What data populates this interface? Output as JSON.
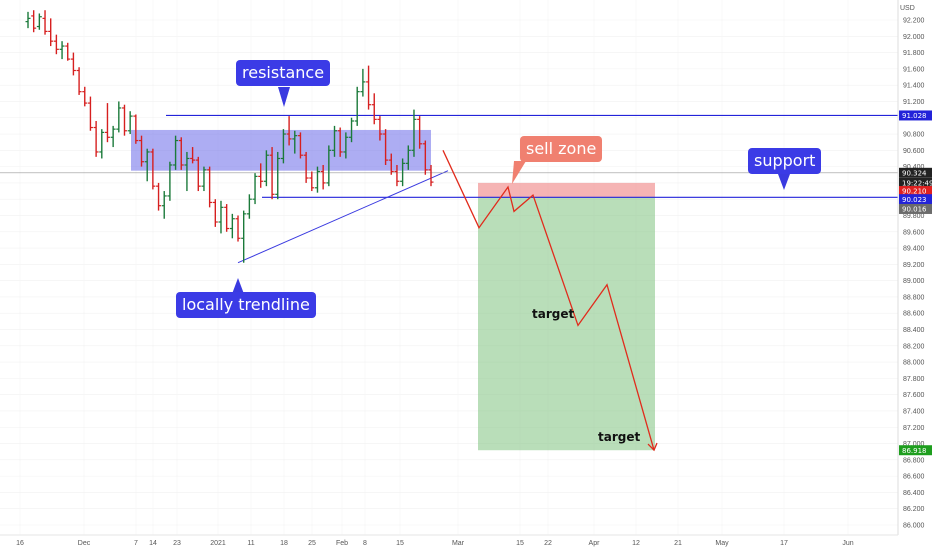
{
  "chart_data": {
    "type": "ohlc",
    "title": "",
    "currency": "USD",
    "ylim": [
      85.9,
      92.5
    ],
    "y_ticks": [
      "92.200",
      "92.000",
      "91.800",
      "91.600",
      "91.400",
      "91.200",
      "91.000",
      "90.800",
      "90.600",
      "90.400",
      "90.200",
      "90.000",
      "89.800",
      "89.600",
      "89.400",
      "89.200",
      "89.000",
      "88.800",
      "88.600",
      "88.400",
      "88.200",
      "88.000",
      "87.800",
      "87.600",
      "87.400",
      "87.200",
      "87.000",
      "86.800",
      "86.600",
      "86.400",
      "86.200",
      "86.000"
    ],
    "x_ticks": [
      "16",
      "Dec",
      "7",
      "14",
      "23",
      "2021",
      "11",
      "18",
      "25",
      "Feb",
      "8",
      "15",
      "Mar",
      "15",
      "22",
      "Apr",
      "12",
      "21",
      "May",
      "17",
      "Jun"
    ],
    "price_badges": [
      {
        "label": "91.028",
        "value": 91.028,
        "color": "#2323d9"
      },
      {
        "label": "90.324",
        "value": 90.324,
        "color": "#222222"
      },
      {
        "label": "19:22:49",
        "value": 90.2,
        "color": "#222222"
      },
      {
        "label": "90.210",
        "value": 90.1,
        "color": "#e02020"
      },
      {
        "label": "90.023",
        "value": 90.0,
        "color": "#2323d9"
      },
      {
        "label": "90.016",
        "value": 89.88,
        "color": "#6b6b6b"
      },
      {
        "label": "86.918",
        "value": 86.918,
        "color": "#1e9e1e"
      }
    ],
    "resistance_zone": [
      90.35,
      90.85
    ],
    "resistance_line": 91.028,
    "support_line": 90.023,
    "sell_zone": [
      90.023,
      90.2
    ],
    "target_box_bottom": 86.918,
    "projection_path_values": [
      90.6,
      89.65,
      90.15,
      89.85,
      90.05,
      88.45,
      88.95,
      86.92
    ],
    "trendline_values": [
      89.22,
      90.35
    ],
    "bars": [
      {
        "o": 92.18,
        "h": 92.3,
        "l": 92.1,
        "c": 92.22
      },
      {
        "o": 92.25,
        "h": 92.32,
        "l": 92.05,
        "c": 92.1
      },
      {
        "o": 92.12,
        "h": 92.28,
        "l": 92.08,
        "c": 92.24
      },
      {
        "o": 92.22,
        "h": 92.32,
        "l": 92.02,
        "c": 92.06
      },
      {
        "o": 92.06,
        "h": 92.22,
        "l": 91.88,
        "c": 91.94
      },
      {
        "o": 91.94,
        "h": 92.02,
        "l": 91.78,
        "c": 91.84
      },
      {
        "o": 91.84,
        "h": 91.94,
        "l": 91.72,
        "c": 91.88
      },
      {
        "o": 91.88,
        "h": 91.92,
        "l": 91.7,
        "c": 91.72
      },
      {
        "o": 91.72,
        "h": 91.8,
        "l": 91.52,
        "c": 91.58
      },
      {
        "o": 91.58,
        "h": 91.62,
        "l": 91.28,
        "c": 91.32
      },
      {
        "o": 91.32,
        "h": 91.38,
        "l": 91.14,
        "c": 91.18
      },
      {
        "o": 91.18,
        "h": 91.26,
        "l": 90.84,
        "c": 90.88
      },
      {
        "o": 90.88,
        "h": 90.96,
        "l": 90.52,
        "c": 90.58
      },
      {
        "o": 90.58,
        "h": 90.86,
        "l": 90.5,
        "c": 90.82
      },
      {
        "o": 90.82,
        "h": 91.18,
        "l": 90.7,
        "c": 90.76
      },
      {
        "o": 90.76,
        "h": 90.9,
        "l": 90.64,
        "c": 90.86
      },
      {
        "o": 90.86,
        "h": 91.2,
        "l": 90.82,
        "c": 91.12
      },
      {
        "o": 91.12,
        "h": 91.16,
        "l": 90.78,
        "c": 90.84
      },
      {
        "o": 90.84,
        "h": 91.08,
        "l": 90.8,
        "c": 91.02
      },
      {
        "o": 91.02,
        "h": 91.04,
        "l": 90.68,
        "c": 90.72
      },
      {
        "o": 90.72,
        "h": 90.78,
        "l": 90.4,
        "c": 90.46
      },
      {
        "o": 90.46,
        "h": 90.62,
        "l": 90.22,
        "c": 90.58
      },
      {
        "o": 90.58,
        "h": 90.62,
        "l": 90.12,
        "c": 90.16
      },
      {
        "o": 90.16,
        "h": 90.2,
        "l": 89.86,
        "c": 89.92
      },
      {
        "o": 89.92,
        "h": 90.1,
        "l": 89.76,
        "c": 90.04
      },
      {
        "o": 90.04,
        "h": 90.46,
        "l": 89.98,
        "c": 90.42
      },
      {
        "o": 90.42,
        "h": 90.78,
        "l": 90.36,
        "c": 90.72
      },
      {
        "o": 90.72,
        "h": 90.76,
        "l": 90.36,
        "c": 90.42
      },
      {
        "o": 90.42,
        "h": 90.58,
        "l": 90.1,
        "c": 90.5
      },
      {
        "o": 90.5,
        "h": 90.64,
        "l": 90.44,
        "c": 90.48
      },
      {
        "o": 90.48,
        "h": 90.52,
        "l": 90.1,
        "c": 90.16
      },
      {
        "o": 90.16,
        "h": 90.4,
        "l": 90.1,
        "c": 90.36
      },
      {
        "o": 90.36,
        "h": 90.4,
        "l": 89.9,
        "c": 89.96
      },
      {
        "o": 89.96,
        "h": 90.0,
        "l": 89.66,
        "c": 89.72
      },
      {
        "o": 89.72,
        "h": 89.98,
        "l": 89.58,
        "c": 89.9
      },
      {
        "o": 89.9,
        "h": 89.94,
        "l": 89.6,
        "c": 89.64
      },
      {
        "o": 89.64,
        "h": 89.82,
        "l": 89.52,
        "c": 89.76
      },
      {
        "o": 89.76,
        "h": 89.8,
        "l": 89.48,
        "c": 89.52
      },
      {
        "o": 89.52,
        "h": 89.86,
        "l": 89.22,
        "c": 89.82
      },
      {
        "o": 89.82,
        "h": 90.06,
        "l": 89.76,
        "c": 90.0
      },
      {
        "o": 90.0,
        "h": 90.32,
        "l": 89.94,
        "c": 90.28
      },
      {
        "o": 90.28,
        "h": 90.44,
        "l": 90.14,
        "c": 90.22
      },
      {
        "o": 90.22,
        "h": 90.6,
        "l": 90.16,
        "c": 90.54
      },
      {
        "o": 90.54,
        "h": 90.64,
        "l": 90.0,
        "c": 90.06
      },
      {
        "o": 90.06,
        "h": 90.58,
        "l": 90.0,
        "c": 90.5
      },
      {
        "o": 90.5,
        "h": 90.86,
        "l": 90.44,
        "c": 90.8
      },
      {
        "o": 90.8,
        "h": 91.02,
        "l": 90.66,
        "c": 90.74
      },
      {
        "o": 90.74,
        "h": 90.84,
        "l": 90.56,
        "c": 90.78
      },
      {
        "o": 90.78,
        "h": 90.82,
        "l": 90.5,
        "c": 90.54
      },
      {
        "o": 90.54,
        "h": 90.58,
        "l": 90.2,
        "c": 90.26
      },
      {
        "o": 90.26,
        "h": 90.34,
        "l": 90.1,
        "c": 90.14
      },
      {
        "o": 90.14,
        "h": 90.4,
        "l": 90.08,
        "c": 90.34
      },
      {
        "o": 90.34,
        "h": 90.42,
        "l": 90.12,
        "c": 90.2
      },
      {
        "o": 90.2,
        "h": 90.66,
        "l": 90.16,
        "c": 90.6
      },
      {
        "o": 90.6,
        "h": 90.9,
        "l": 90.52,
        "c": 90.84
      },
      {
        "o": 90.84,
        "h": 90.88,
        "l": 90.52,
        "c": 90.58
      },
      {
        "o": 90.58,
        "h": 90.82,
        "l": 90.5,
        "c": 90.76
      },
      {
        "o": 90.76,
        "h": 91.0,
        "l": 90.7,
        "c": 90.96
      },
      {
        "o": 90.96,
        "h": 91.38,
        "l": 90.9,
        "c": 91.32
      },
      {
        "o": 91.32,
        "h": 91.6,
        "l": 91.26,
        "c": 91.44
      },
      {
        "o": 91.44,
        "h": 91.64,
        "l": 91.1,
        "c": 91.16
      },
      {
        "o": 91.16,
        "h": 91.3,
        "l": 90.92,
        "c": 90.98
      },
      {
        "o": 90.98,
        "h": 91.02,
        "l": 90.72,
        "c": 90.8
      },
      {
        "o": 90.8,
        "h": 90.86,
        "l": 90.42,
        "c": 90.48
      },
      {
        "o": 90.48,
        "h": 90.56,
        "l": 90.3,
        "c": 90.34
      },
      {
        "o": 90.34,
        "h": 90.42,
        "l": 90.16,
        "c": 90.22
      },
      {
        "o": 90.22,
        "h": 90.5,
        "l": 90.16,
        "c": 90.44
      },
      {
        "o": 90.44,
        "h": 90.66,
        "l": 90.36,
        "c": 90.6
      },
      {
        "o": 90.6,
        "h": 91.1,
        "l": 90.52,
        "c": 90.98
      },
      {
        "o": 90.98,
        "h": 91.02,
        "l": 90.62,
        "c": 90.68
      },
      {
        "o": 90.68,
        "h": 90.72,
        "l": 90.3,
        "c": 90.36
      },
      {
        "o": 90.36,
        "h": 90.42,
        "l": 90.16,
        "c": 90.21
      }
    ]
  },
  "annotations": {
    "resistance": "resistance",
    "support": "support",
    "sell_zone": "sell zone",
    "trendline": "locally trendline",
    "target1": "target",
    "target2": "target"
  }
}
